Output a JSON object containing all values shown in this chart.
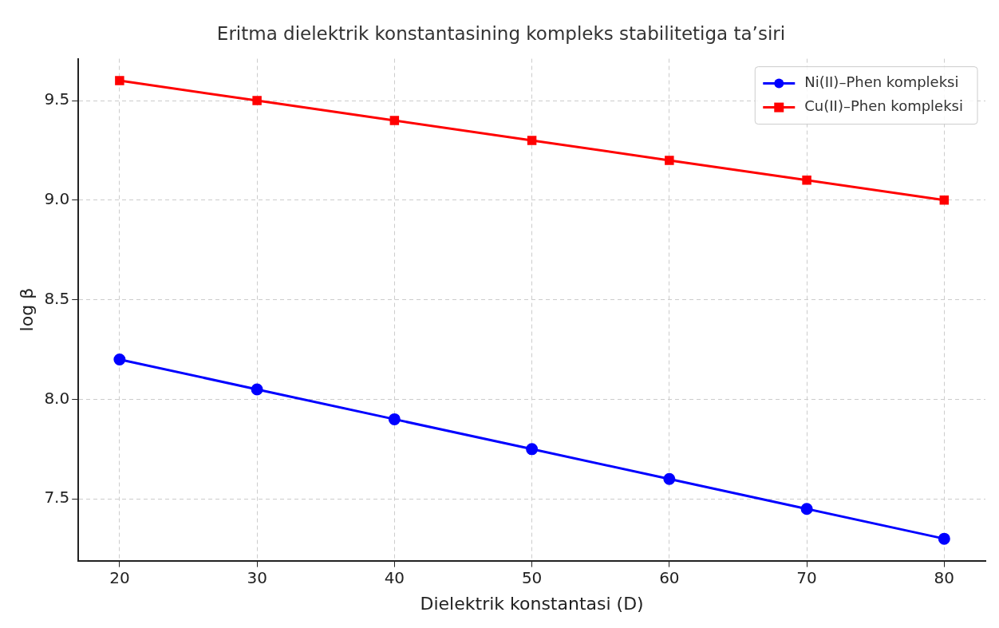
{
  "chart_data": {
    "type": "line",
    "title": "Eritma dielektrik konstantasining kompleks stabilitetiga ta’siri",
    "xlabel": "Dielektrik konstantasi (D)",
    "ylabel": "log β",
    "x": [
      20,
      30,
      40,
      50,
      60,
      70,
      80
    ],
    "series": [
      {
        "name": "Ni(II)–Phen kompleksi",
        "color": "#0000ff",
        "marker": "circle",
        "values": [
          8.2,
          8.05,
          7.9,
          7.75,
          7.6,
          7.45,
          7.3
        ]
      },
      {
        "name": "Cu(II)–Phen kompleksi",
        "color": "#ff0000",
        "marker": "square",
        "values": [
          9.6,
          9.5,
          9.4,
          9.3,
          9.2,
          9.1,
          9.0
        ]
      }
    ],
    "xlim": [
      17,
      83
    ],
    "xticks": [
      20,
      30,
      40,
      50,
      60,
      70,
      80
    ],
    "ylim": [
      7.19,
      9.71
    ],
    "yticks": [
      {
        "value": 7.5,
        "label": "7.5"
      },
      {
        "value": 8.0,
        "label": "8.0"
      },
      {
        "value": 8.5,
        "label": "8.5"
      },
      {
        "value": 9.0,
        "label": "9.0"
      },
      {
        "value": 9.5,
        "label": "9.5"
      }
    ],
    "grid": true,
    "legend": "top right",
    "line_style": "solid"
  }
}
